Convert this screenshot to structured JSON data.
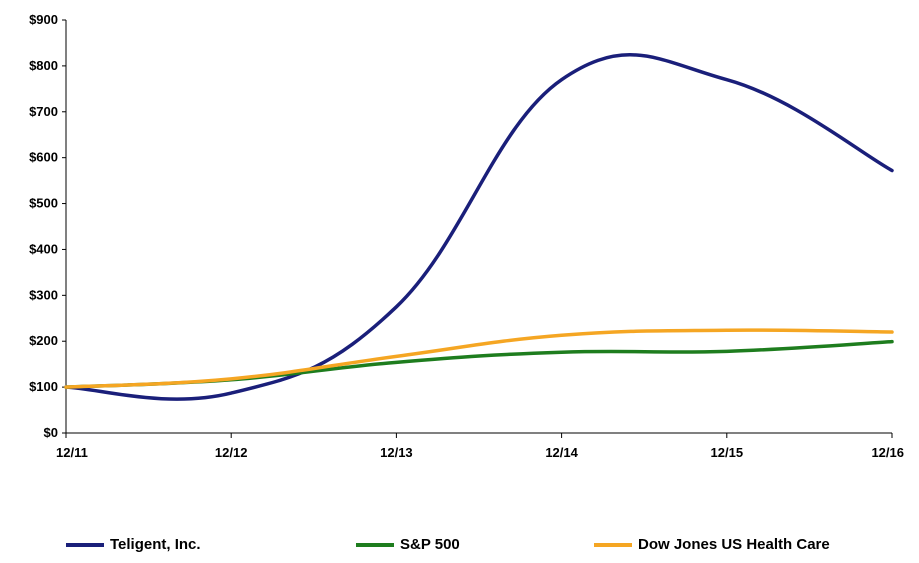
{
  "chart_data": {
    "type": "line",
    "categories": [
      "12/11",
      "12/12",
      "12/13",
      "12/14",
      "12/15",
      "12/16"
    ],
    "y_ticks": [
      "$0",
      "$100",
      "$200",
      "$300",
      "$400",
      "$500",
      "$600",
      "$700",
      "$800",
      "$900"
    ],
    "ylim": [
      0,
      900
    ],
    "grid": false,
    "legend_position": "bottom",
    "series": [
      {
        "name": "Teligent, Inc.",
        "color": "#1a1f7a",
        "values": [
          100,
          87,
          275,
          770,
          770,
          572
        ]
      },
      {
        "name": "S&P 500",
        "color": "#1e7d1e",
        "values": [
          100,
          116,
          154,
          176,
          178,
          199
        ]
      },
      {
        "name": "Dow Jones US Health Care",
        "color": "#f5a623",
        "values": [
          100,
          118,
          167,
          213,
          224,
          220
        ]
      }
    ]
  }
}
